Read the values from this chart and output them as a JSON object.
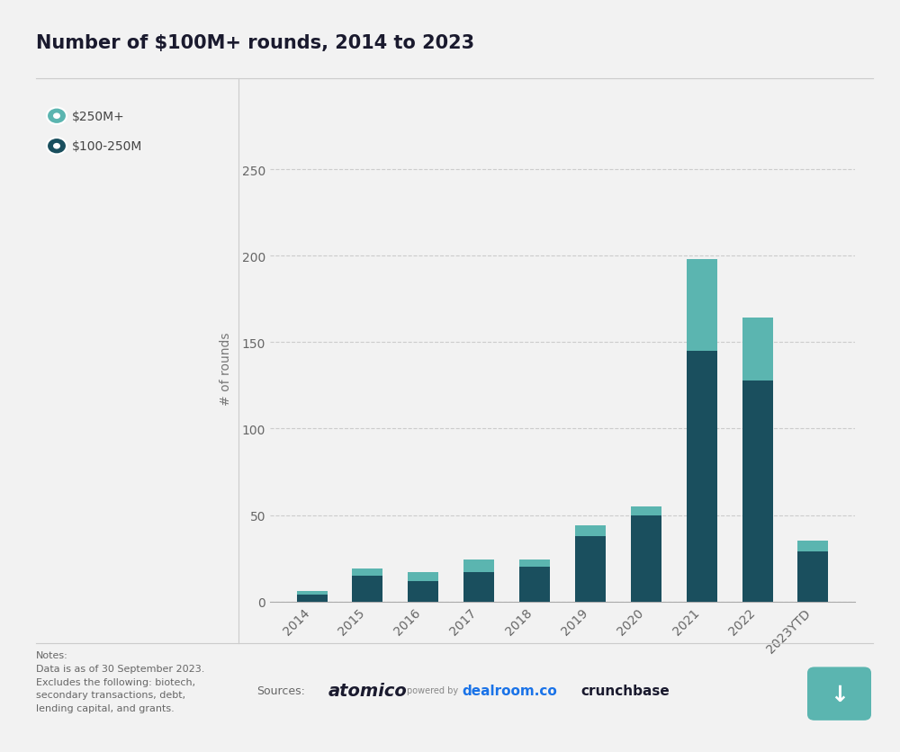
{
  "title": "Number of $100M+ rounds, 2014 to 2023",
  "categories": [
    "2014",
    "2015",
    "2016",
    "2017",
    "2018",
    "2019",
    "2020",
    "2021",
    "2022",
    "2023YTD"
  ],
  "values_bottom": [
    4,
    15,
    12,
    17,
    20,
    38,
    50,
    145,
    128,
    29
  ],
  "values_top": [
    2,
    4,
    5,
    7,
    4,
    6,
    5,
    53,
    36,
    6
  ],
  "color_bottom": "#1a4f5e",
  "color_top": "#5bb5b0",
  "ylabel": "# of rounds",
  "ylim": [
    0,
    270
  ],
  "yticks": [
    0,
    50,
    100,
    150,
    200,
    250
  ],
  "legend_labels": [
    "$250M+",
    "$100-250M"
  ],
  "legend_colors": [
    "#5bb5b0",
    "#1a4f5e"
  ],
  "background_color": "#f2f2f2",
  "plot_bg_color": "#f2f2f2",
  "title_fontsize": 15,
  "axis_fontsize": 10,
  "tick_fontsize": 10,
  "notes_text": "Notes:\nData is as of 30 September 2023.\nExcludes the following: biotech,\nsecondary transactions, debt,\nlending capital, and grants.",
  "sources_text": "Sources:"
}
